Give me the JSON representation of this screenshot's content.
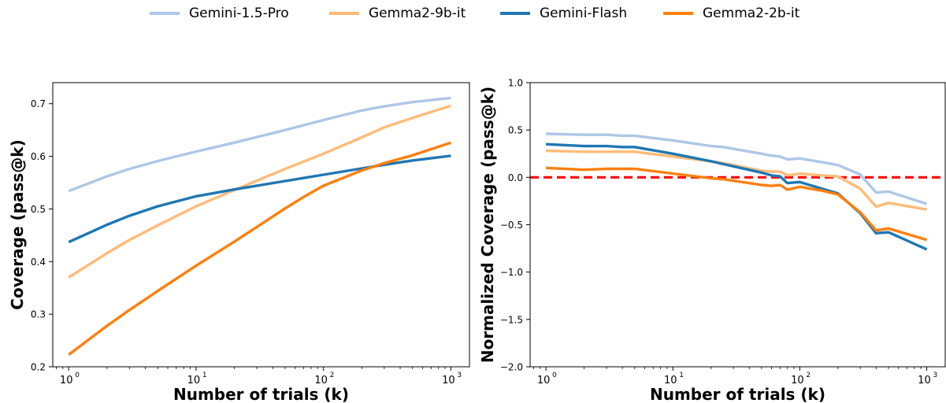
{
  "legend": [
    {
      "name": "Gemini-1.5-Pro",
      "color": "#aec7e8"
    },
    {
      "name": "Gemma2-9b-it",
      "color": "#ffbb78"
    },
    {
      "name": "Gemini-Flash",
      "color": "#1f77b4"
    },
    {
      "name": "Gemma2-2b-it",
      "color": "#ff7f0e"
    }
  ],
  "chart_data": [
    {
      "type": "line",
      "title": "",
      "xlabel": "Number of trials (k)",
      "ylabel": "Coverage (pass@k)",
      "x_scale": "log",
      "xlim": [
        0.75,
        1400
      ],
      "ylim": [
        0.2,
        0.74
      ],
      "xticks": [
        1,
        10,
        100,
        1000
      ],
      "xtick_labels": [
        "10",
        "10",
        "10",
        "10"
      ],
      "xtick_exponents": [
        "0",
        "1",
        "2",
        "3"
      ],
      "yticks": [
        0.2,
        0.3,
        0.4,
        0.5,
        0.6,
        0.7
      ],
      "ytick_labels": [
        "0.2",
        "0.3",
        "0.4",
        "0.5",
        "0.6",
        "0.7"
      ],
      "grid": false,
      "series": [
        {
          "name": "Gemini-1.5-Pro",
          "color": "#aec7e8",
          "x": [
            1,
            2,
            3,
            5,
            10,
            20,
            50,
            100,
            200,
            300,
            500,
            1000
          ],
          "y": [
            0.534,
            0.562,
            0.576,
            0.591,
            0.609,
            0.626,
            0.65,
            0.669,
            0.687,
            0.695,
            0.703,
            0.711
          ]
        },
        {
          "name": "Gemma2-9b-it",
          "color": "#ffbb78",
          "x": [
            1,
            2,
            3,
            5,
            10,
            20,
            50,
            100,
            200,
            300,
            500,
            1000
          ],
          "y": [
            0.37,
            0.416,
            0.441,
            0.469,
            0.505,
            0.536,
            0.576,
            0.605,
            0.636,
            0.655,
            0.673,
            0.696
          ]
        },
        {
          "name": "Gemini-Flash",
          "color": "#1f77b4",
          "x": [
            1,
            2,
            3,
            5,
            10,
            20,
            50,
            100,
            200,
            300,
            500,
            1000
          ],
          "y": [
            0.437,
            0.47,
            0.487,
            0.505,
            0.524,
            0.537,
            0.553,
            0.565,
            0.577,
            0.584,
            0.592,
            0.601
          ]
        },
        {
          "name": "Gemma2-2b-it",
          "color": "#ff7f0e",
          "x": [
            1,
            2,
            3,
            5,
            10,
            20,
            50,
            70,
            100,
            200,
            300,
            500,
            1000
          ],
          "y": [
            0.223,
            0.278,
            0.308,
            0.344,
            0.392,
            0.438,
            0.501,
            0.523,
            0.544,
            0.573,
            0.587,
            0.602,
            0.626
          ]
        }
      ]
    },
    {
      "type": "line",
      "title": "",
      "xlabel": "Number of trials (k)",
      "ylabel": "Normalized Coverage (pass@k)",
      "x_scale": "log",
      "xlim": [
        0.75,
        1400
      ],
      "ylim": [
        -2.0,
        1.0
      ],
      "xticks": [
        1,
        10,
        100,
        1000
      ],
      "xtick_labels": [
        "10",
        "10",
        "10",
        "10"
      ],
      "xtick_exponents": [
        "0",
        "1",
        "2",
        "3"
      ],
      "yticks": [
        -2.0,
        -1.5,
        -1.0,
        -0.5,
        0.0,
        0.5,
        1.0
      ],
      "ytick_labels": [
        "−2.0",
        "−1.5",
        "−1.0",
        "−0.5",
        "0.0",
        "0.5",
        "1.0"
      ],
      "grid": false,
      "reference_line": {
        "y": 0.0,
        "color": "#ff0000",
        "style": "dashed"
      },
      "series": [
        {
          "name": "Gemini-1.5-Pro",
          "color": "#aec7e8",
          "x": [
            1,
            2,
            3,
            4,
            5,
            10,
            20,
            25,
            50,
            60,
            70,
            80,
            100,
            150,
            200,
            300,
            400,
            500,
            1000
          ],
          "y": [
            0.46,
            0.45,
            0.45,
            0.44,
            0.44,
            0.39,
            0.33,
            0.32,
            0.25,
            0.23,
            0.22,
            0.19,
            0.2,
            0.16,
            0.13,
            0.03,
            -0.16,
            -0.15,
            -0.28
          ]
        },
        {
          "name": "Gemma2-9b-it",
          "color": "#ffbb78",
          "x": [
            1,
            2,
            3,
            4,
            5,
            10,
            20,
            25,
            50,
            60,
            70,
            80,
            100,
            150,
            200,
            300,
            400,
            500,
            1000
          ],
          "y": [
            0.28,
            0.27,
            0.27,
            0.27,
            0.27,
            0.22,
            0.17,
            0.15,
            0.07,
            0.06,
            0.06,
            0.02,
            0.04,
            0.02,
            0.01,
            -0.12,
            -0.31,
            -0.27,
            -0.34
          ]
        },
        {
          "name": "Gemini-Flash",
          "color": "#1f77b4",
          "x": [
            1,
            2,
            3,
            4,
            5,
            10,
            20,
            25,
            50,
            60,
            70,
            80,
            100,
            150,
            200,
            300,
            400,
            500,
            1000
          ],
          "y": [
            0.35,
            0.33,
            0.33,
            0.32,
            0.32,
            0.25,
            0.17,
            0.14,
            0.05,
            0.02,
            0.01,
            -0.06,
            -0.05,
            -0.12,
            -0.17,
            -0.38,
            -0.59,
            -0.58,
            -0.76
          ]
        },
        {
          "name": "Gemma2-2b-it",
          "color": "#ff7f0e",
          "x": [
            1,
            2,
            3,
            4,
            5,
            10,
            20,
            25,
            50,
            60,
            70,
            80,
            100,
            150,
            200,
            300,
            400,
            500,
            1000
          ],
          "y": [
            0.1,
            0.08,
            0.09,
            0.09,
            0.09,
            0.04,
            -0.01,
            -0.02,
            -0.08,
            -0.09,
            -0.08,
            -0.13,
            -0.1,
            -0.14,
            -0.18,
            -0.37,
            -0.56,
            -0.54,
            -0.66
          ]
        }
      ]
    }
  ]
}
